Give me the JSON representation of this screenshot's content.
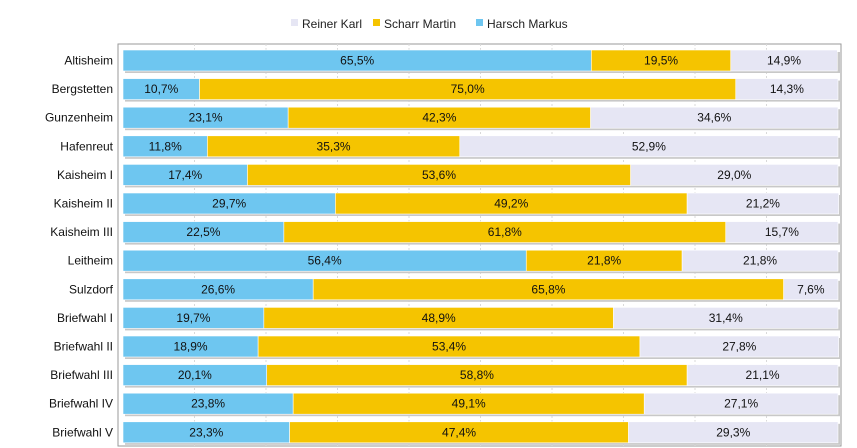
{
  "chart_data": {
    "type": "bar",
    "orientation": "horizontal",
    "stacked": "percent",
    "categories": [
      "Altisheim",
      "Bergstetten",
      "Gunzenheim",
      "Hafenreut",
      "Kaisheim I",
      "Kaisheim II",
      "Kaisheim III",
      "Leitheim",
      "Sulzdorf",
      "Briefwahl I",
      "Briefwahl II",
      "Briefwahl III",
      "Briefwahl IV",
      "Briefwahl V"
    ],
    "series": [
      {
        "name": "Harsch Markus",
        "color": "#6ec6f0",
        "values": [
          65.5,
          10.7,
          23.1,
          11.8,
          17.4,
          29.7,
          22.5,
          56.4,
          26.6,
          19.7,
          18.9,
          20.1,
          23.8,
          23.3
        ],
        "labels": [
          "65,5%",
          "10,7%",
          "23,1%",
          "11,8%",
          "17,4%",
          "29,7%",
          "22,5%",
          "56,4%",
          "26,6%",
          "19,7%",
          "18,9%",
          "20,1%",
          "23,8%",
          "23,3%"
        ]
      },
      {
        "name": "Scharr Martin",
        "color": "#f5c400",
        "values": [
          19.5,
          75.0,
          42.3,
          35.3,
          53.6,
          49.2,
          61.8,
          21.8,
          65.8,
          48.9,
          53.4,
          58.8,
          49.1,
          47.4
        ],
        "labels": [
          "19,5%",
          "75,0%",
          "42,3%",
          "35,3%",
          "53,6%",
          "49,2%",
          "61,8%",
          "21,8%",
          "65,8%",
          "48,9%",
          "53,4%",
          "58,8%",
          "49,1%",
          "47,4%"
        ]
      },
      {
        "name": "Reiner Karl",
        "color": "#e6e6f4",
        "values": [
          14.9,
          14.3,
          34.6,
          52.9,
          29.0,
          21.2,
          15.7,
          21.8,
          7.6,
          31.4,
          27.8,
          21.1,
          27.1,
          29.3
        ],
        "labels": [
          "14,9%",
          "14,3%",
          "34,6%",
          "52,9%",
          "29,0%",
          "21,2%",
          "15,7%",
          "21,8%",
          "7,6%",
          "31,4%",
          "27,8%",
          "21,1%",
          "27,1%",
          "29,3%"
        ]
      }
    ],
    "legend": {
      "position": "top",
      "order": [
        "Reiner Karl",
        "Scharr Martin",
        "Harsch Markus"
      ]
    },
    "grid": true
  }
}
